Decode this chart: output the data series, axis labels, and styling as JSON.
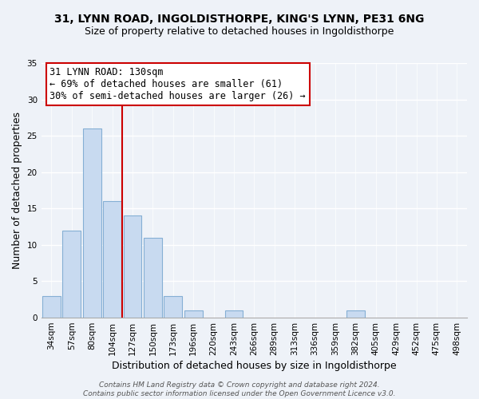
{
  "title": "31, LYNN ROAD, INGOLDISTHORPE, KING'S LYNN, PE31 6NG",
  "subtitle": "Size of property relative to detached houses in Ingoldisthorpe",
  "xlabel": "Distribution of detached houses by size in Ingoldisthorpe",
  "ylabel": "Number of detached properties",
  "bin_labels": [
    "34sqm",
    "57sqm",
    "80sqm",
    "104sqm",
    "127sqm",
    "150sqm",
    "173sqm",
    "196sqm",
    "220sqm",
    "243sqm",
    "266sqm",
    "289sqm",
    "313sqm",
    "336sqm",
    "359sqm",
    "382sqm",
    "405sqm",
    "429sqm",
    "452sqm",
    "475sqm",
    "498sqm"
  ],
  "bar_heights": [
    3,
    12,
    26,
    16,
    14,
    11,
    3,
    1,
    0,
    1,
    0,
    0,
    0,
    0,
    0,
    1,
    0,
    0,
    0,
    0,
    0
  ],
  "bar_color": "#c8daf0",
  "bar_edge_color": "#85afd4",
  "vline_color": "#cc0000",
  "vline_x": 3.5,
  "ylim": [
    0,
    35
  ],
  "yticks": [
    0,
    5,
    10,
    15,
    20,
    25,
    30,
    35
  ],
  "annotation_line1": "31 LYNN ROAD: 130sqm",
  "annotation_line2": "← 69% of detached houses are smaller (61)",
  "annotation_line3": "30% of semi-detached houses are larger (26) →",
  "annotation_box_color": "#ffffff",
  "annotation_box_edge": "#cc0000",
  "footer_text": "Contains HM Land Registry data © Crown copyright and database right 2024.\nContains public sector information licensed under the Open Government Licence v3.0.",
  "background_color": "#eef2f8",
  "grid_color": "#ffffff",
  "title_fontsize": 10,
  "subtitle_fontsize": 9,
  "ylabel_fontsize": 9,
  "xlabel_fontsize": 9,
  "tick_fontsize": 7.5,
  "annot_fontsize": 8.5,
  "footer_fontsize": 6.5
}
